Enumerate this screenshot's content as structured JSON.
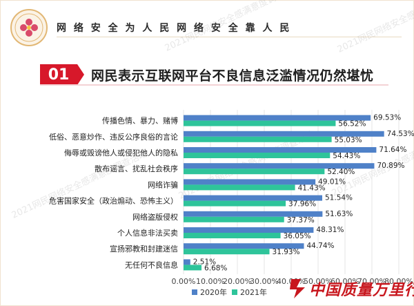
{
  "header": {
    "slogan": "网 络 安 全 为 人 民     网 络 安 全 靠 人 民",
    "watermark": "2021网民网络安全感满意度调查活动"
  },
  "title": {
    "number": "01",
    "text": "网民表示互联网平台不良信息泛滥情况仍然堪忧"
  },
  "colors": {
    "series_2020": "#4f81c8",
    "series_2021": "#2ec49a",
    "accent": "#d7182a"
  },
  "chart_data": {
    "type": "bar",
    "orientation": "horizontal",
    "categories": [
      "传播色情、暴力、赌博",
      "低俗、恶意炒作、违反公序良俗的言论",
      "侮辱或毁谤他人或侵犯他人的隐私",
      "散布谣言、扰乱社会秩序",
      "网络诈骗",
      "危害国家安全（政治煽动、恐怖主义）",
      "网络盗版侵权",
      "个人信息非法买卖",
      "宣扬邪教和封建迷信",
      "无任何不良信息"
    ],
    "series": [
      {
        "name": "2020年",
        "values": [
          69.53,
          74.53,
          71.64,
          70.89,
          49.01,
          51.54,
          51.63,
          48.31,
          44.74,
          2.51
        ],
        "labels": [
          "69.53%",
          "74.53%",
          "71.64%",
          "70.89%",
          "49.01%",
          "51.54%",
          "51.63%",
          "48.31%",
          "44.74%",
          "2.51%"
        ]
      },
      {
        "name": "2021年",
        "values": [
          56.52,
          55.03,
          54.43,
          52.4,
          41.43,
          37.96,
          37.37,
          36.05,
          31.93,
          6.68
        ],
        "labels": [
          "56.52%",
          "55.03%",
          "54.43%",
          "52.40%",
          "41.43%",
          "37.96%",
          "37.37%",
          "36.05%",
          "31.93%",
          "6.68%"
        ]
      }
    ],
    "xlim": [
      0,
      80
    ],
    "x_ticks": [
      "0.00%",
      "10.00%",
      "20.00%",
      "30.00%",
      "40.00%",
      "50.00%",
      "60.00%",
      "70.00%",
      "80.00%"
    ],
    "grid": true,
    "legend_position": "bottom"
  },
  "brand": {
    "text": "中国质量万里行"
  }
}
